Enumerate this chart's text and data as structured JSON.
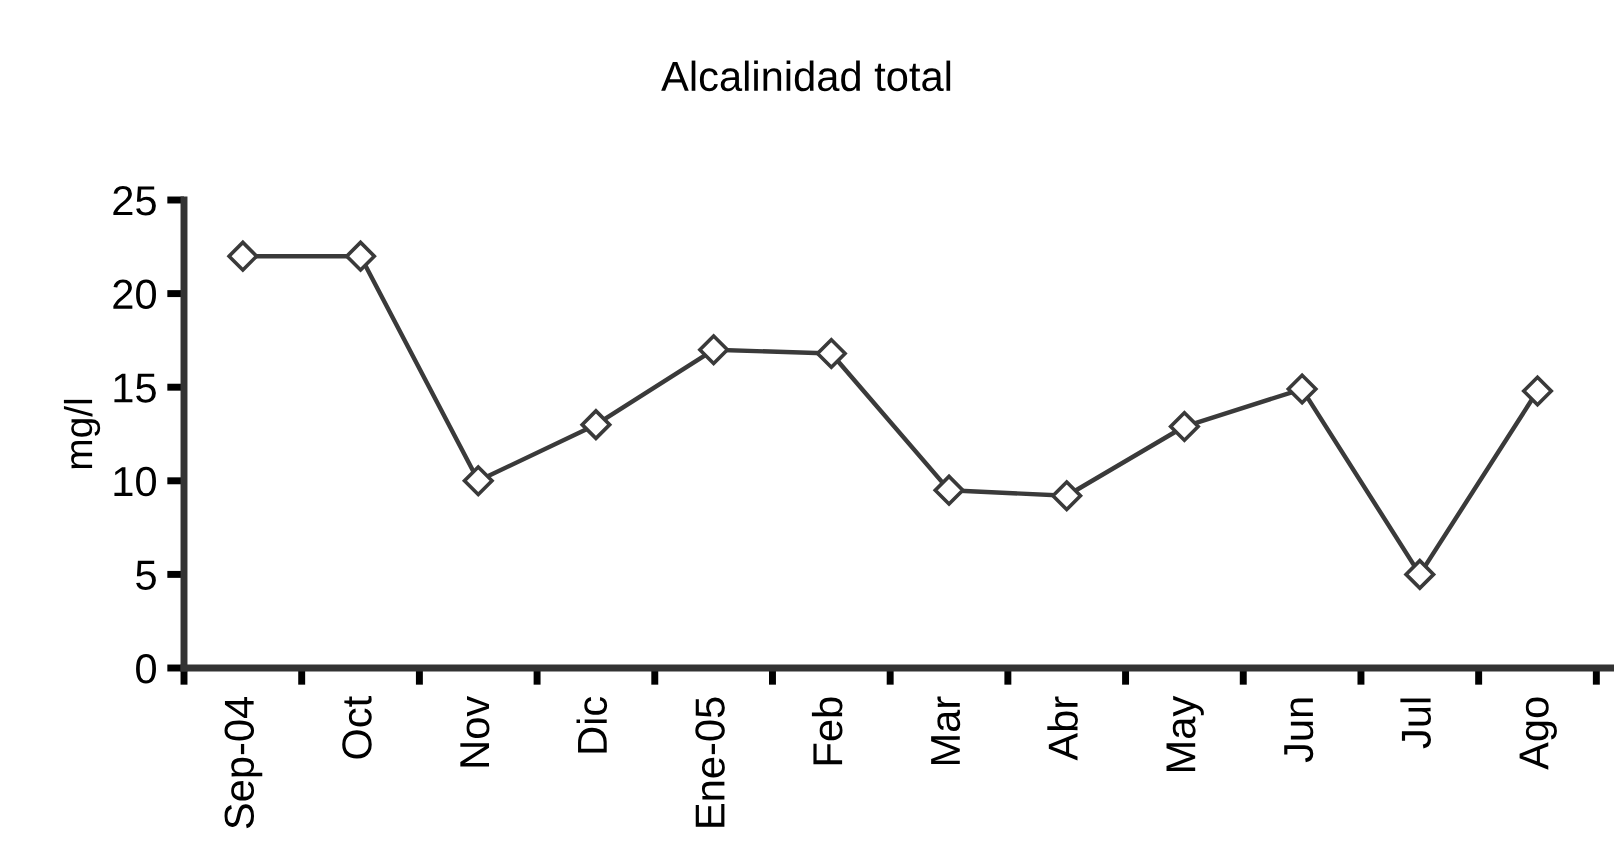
{
  "chart_data": {
    "type": "line",
    "title": "Alcalinidad total",
    "ylabel": "mg/l",
    "categories": [
      "Sep-04",
      "Oct",
      "Nov",
      "Dic",
      "Ene-05",
      "Feb",
      "Mar",
      "Abr",
      "May",
      "Jun",
      "Jul",
      "Ago"
    ],
    "series": [
      {
        "color": "#3a3a3a",
        "values": [
          22,
          22,
          10,
          13,
          17,
          16.8,
          9.5,
          9.2,
          12.9,
          14.9,
          5,
          14.8
        ]
      }
    ],
    "ylim": [
      0,
      25
    ],
    "yticks": [
      0,
      5,
      10,
      15,
      20,
      25
    ],
    "grid": false,
    "legend": false,
    "marker": "diamond",
    "line_style": "solid"
  }
}
